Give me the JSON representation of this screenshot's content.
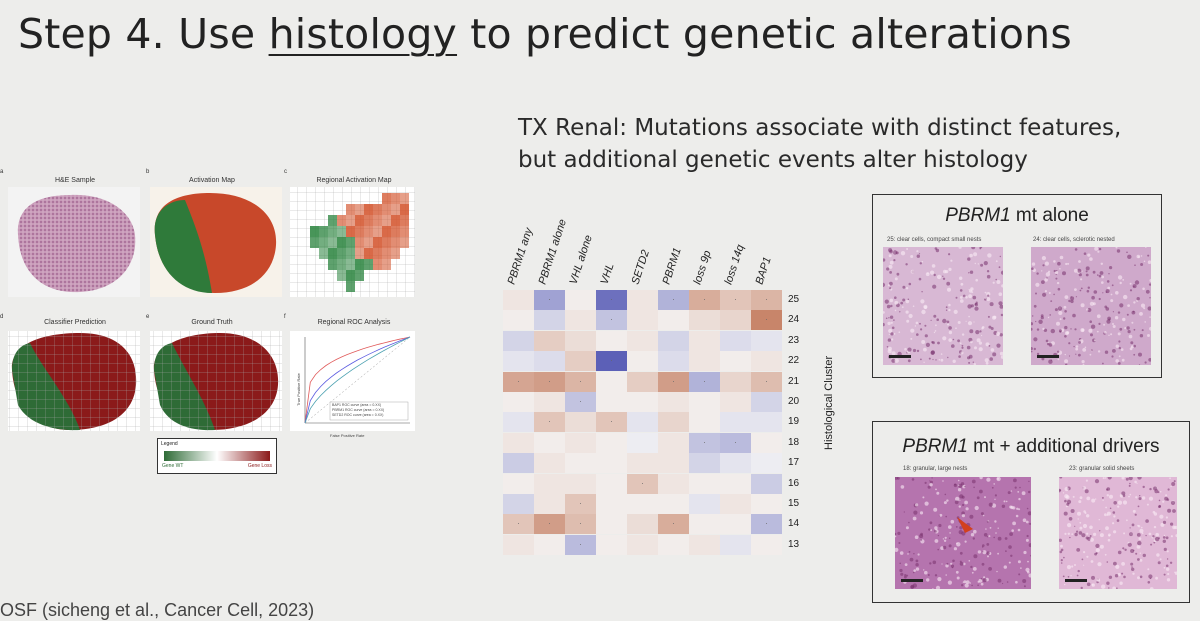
{
  "slide": {
    "title_pre": "Step 4. Use ",
    "title_link": "histology",
    "title_post": " to predict genetic alterations",
    "subtitle_line1": "TX Renal:  Mutations associate with distinct features,",
    "subtitle_line2": "but additional genetic events alter histology",
    "footer": "OSF (sicheng et al., Cancer Cell, 2023)"
  },
  "figure_left": {
    "panels": [
      {
        "letter": "a",
        "label": "H&E Sample"
      },
      {
        "letter": "b",
        "label": "Activation Map"
      },
      {
        "letter": "c",
        "label": "Regional Activation Map"
      },
      {
        "letter": "d",
        "label": "Classifier Prediction"
      },
      {
        "letter": "e",
        "label": "Ground Truth"
      },
      {
        "letter": "f",
        "label": "Regional ROC Analysis"
      }
    ],
    "legend": {
      "title": "Legend",
      "left": "Gene WT",
      "right": "Gene Loss"
    },
    "roc": {
      "xlabel": "False Positive Rate",
      "ylabel": "True Positive Rate",
      "legend": [
        "BAP1 ROC curve (area = 0.XX)",
        "PBRM1 ROC curve (area = 0.XX)",
        "SETD2 ROC curve (area = 0.XX)"
      ],
      "colors": [
        "#e05a5a",
        "#5a5ae0",
        "#4aa0b0"
      ]
    }
  },
  "heatmap": {
    "columns": [
      "PBRM1 any",
      "PBRM1 alone",
      "VHL alone",
      "VHL",
      "SETD2",
      "PBRM1",
      "loss 9p",
      "loss 14q",
      "BAP1"
    ],
    "rows": [
      "25",
      "24",
      "23",
      "22",
      "21",
      "20",
      "19",
      "18",
      "17",
      "16",
      "15",
      "14",
      "13"
    ],
    "ylabel": "Histological Cluster",
    "values": [
      [
        0.1,
        -0.5,
        0.05,
        -0.8,
        0.1,
        -0.4,
        0.45,
        0.3,
        0.4
      ],
      [
        0.05,
        -0.2,
        0.1,
        -0.3,
        0.1,
        0.05,
        0.15,
        0.2,
        0.7
      ],
      [
        -0.2,
        0.25,
        0.15,
        0.05,
        0.1,
        -0.2,
        0.1,
        -0.15,
        -0.1
      ],
      [
        -0.1,
        -0.15,
        0.25,
        -0.9,
        0.05,
        -0.15,
        0.1,
        0.05,
        0.1
      ],
      [
        0.5,
        0.55,
        0.4,
        0.05,
        0.25,
        0.55,
        -0.4,
        0.2,
        0.35
      ],
      [
        0.05,
        0.1,
        -0.3,
        0.05,
        0.05,
        0.1,
        0.05,
        0.1,
        -0.2
      ],
      [
        -0.1,
        0.3,
        0.15,
        0.3,
        -0.1,
        0.2,
        0.05,
        -0.1,
        -0.1
      ],
      [
        0.1,
        0.05,
        0.1,
        0.05,
        -0.05,
        0.1,
        -0.3,
        -0.35,
        0.05
      ],
      [
        -0.25,
        0.1,
        0.05,
        0.05,
        0.1,
        0.1,
        -0.2,
        -0.1,
        -0.05
      ],
      [
        0.05,
        0.1,
        0.1,
        0.05,
        0.3,
        0.1,
        0.05,
        0.05,
        -0.25
      ],
      [
        -0.2,
        0.1,
        0.3,
        0.05,
        0.05,
        0.05,
        -0.1,
        0.1,
        0.05
      ],
      [
        0.3,
        0.55,
        0.35,
        0.05,
        0.15,
        0.45,
        0.05,
        0.05,
        -0.35
      ],
      [
        0.1,
        0.05,
        -0.35,
        0.05,
        0.1,
        0.05,
        0.1,
        -0.1,
        0.05
      ]
    ]
  },
  "box_top": {
    "gene": "PBRM1",
    "rest": " mt alone",
    "captions": [
      "25: clear cells, compact small nests",
      "24: clear cells, sclerotic nested"
    ]
  },
  "box_bottom": {
    "gene": "PBRM1",
    "rest": " mt + additional drivers",
    "captions": [
      "18: granular, large nests",
      "23: granular solid sheets"
    ]
  },
  "colors": {
    "positive": "#b4552e",
    "negative": "#4b4fb0",
    "gene_loss": "#8b1a1a",
    "gene_wt": "#2e6b36"
  }
}
